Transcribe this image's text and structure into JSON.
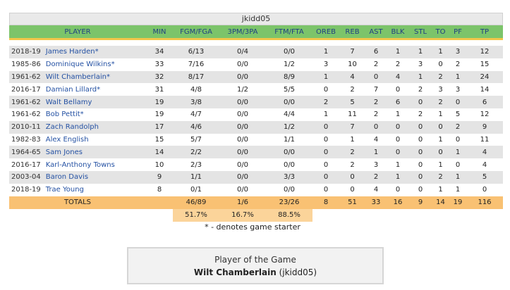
{
  "box": {
    "header": "jkidd05",
    "columns": [
      "PLAYER",
      "MIN",
      "FGM/FGA",
      "3PM/3PA",
      "FTM/FTA",
      "OREB",
      "REB",
      "AST",
      "BLK",
      "STL",
      "TO",
      "PF",
      "TP"
    ],
    "rows": [
      {
        "season": "2018-19",
        "name": "James Harden*",
        "min": "34",
        "fg": "6/13",
        "tp3": "0/4",
        "ft": "0/0",
        "oreb": "1",
        "reb": "7",
        "ast": "6",
        "blk": "1",
        "stl": "1",
        "to": "1",
        "pf": "3",
        "tp": "12"
      },
      {
        "season": "1985-86",
        "name": "Dominique Wilkins*",
        "min": "33",
        "fg": "7/16",
        "tp3": "0/0",
        "ft": "1/2",
        "oreb": "3",
        "reb": "10",
        "ast": "2",
        "blk": "2",
        "stl": "3",
        "to": "0",
        "pf": "2",
        "tp": "15"
      },
      {
        "season": "1961-62",
        "name": "Wilt Chamberlain*",
        "min": "32",
        "fg": "8/17",
        "tp3": "0/0",
        "ft": "8/9",
        "oreb": "1",
        "reb": "4",
        "ast": "0",
        "blk": "4",
        "stl": "1",
        "to": "2",
        "pf": "1",
        "tp": "24"
      },
      {
        "season": "2016-17",
        "name": "Damian Lillard*",
        "min": "31",
        "fg": "4/8",
        "tp3": "1/2",
        "ft": "5/5",
        "oreb": "0",
        "reb": "2",
        "ast": "7",
        "blk": "0",
        "stl": "2",
        "to": "3",
        "pf": "3",
        "tp": "14"
      },
      {
        "season": "1961-62",
        "name": "Walt Bellamy",
        "min": "19",
        "fg": "3/8",
        "tp3": "0/0",
        "ft": "0/0",
        "oreb": "2",
        "reb": "5",
        "ast": "2",
        "blk": "6",
        "stl": "0",
        "to": "2",
        "pf": "0",
        "tp": "6"
      },
      {
        "season": "1961-62",
        "name": "Bob Pettit*",
        "min": "19",
        "fg": "4/7",
        "tp3": "0/0",
        "ft": "4/4",
        "oreb": "1",
        "reb": "11",
        "ast": "2",
        "blk": "1",
        "stl": "2",
        "to": "1",
        "pf": "5",
        "tp": "12"
      },
      {
        "season": "2010-11",
        "name": "Zach Randolph",
        "min": "17",
        "fg": "4/6",
        "tp3": "0/0",
        "ft": "1/2",
        "oreb": "0",
        "reb": "7",
        "ast": "0",
        "blk": "0",
        "stl": "0",
        "to": "0",
        "pf": "2",
        "tp": "9"
      },
      {
        "season": "1982-83",
        "name": "Alex English",
        "min": "15",
        "fg": "5/7",
        "tp3": "0/0",
        "ft": "1/1",
        "oreb": "0",
        "reb": "1",
        "ast": "4",
        "blk": "0",
        "stl": "0",
        "to": "1",
        "pf": "0",
        "tp": "11"
      },
      {
        "season": "1964-65",
        "name": "Sam Jones",
        "min": "14",
        "fg": "2/2",
        "tp3": "0/0",
        "ft": "0/0",
        "oreb": "0",
        "reb": "2",
        "ast": "1",
        "blk": "0",
        "stl": "0",
        "to": "0",
        "pf": "1",
        "tp": "4"
      },
      {
        "season": "2016-17",
        "name": "Karl-Anthony Towns",
        "min": "10",
        "fg": "2/3",
        "tp3": "0/0",
        "ft": "0/0",
        "oreb": "0",
        "reb": "2",
        "ast": "3",
        "blk": "1",
        "stl": "0",
        "to": "1",
        "pf": "0",
        "tp": "4"
      },
      {
        "season": "2003-04",
        "name": "Baron Davis",
        "min": "9",
        "fg": "1/1",
        "tp3": "0/0",
        "ft": "3/3",
        "oreb": "0",
        "reb": "0",
        "ast": "2",
        "blk": "1",
        "stl": "0",
        "to": "2",
        "pf": "1",
        "tp": "5"
      },
      {
        "season": "2018-19",
        "name": "Trae Young",
        "min": "8",
        "fg": "0/1",
        "tp3": "0/0",
        "ft": "0/0",
        "oreb": "0",
        "reb": "0",
        "ast": "4",
        "blk": "0",
        "stl": "0",
        "to": "1",
        "pf": "1",
        "tp": "0"
      }
    ],
    "totals": {
      "label": "TOTALS",
      "min": "",
      "fg": "46/89",
      "tp3": "1/6",
      "ft": "23/26",
      "oreb": "8",
      "reb": "51",
      "ast": "33",
      "blk": "16",
      "stl": "9",
      "to": "14",
      "pf": "19",
      "tp": "116"
    },
    "percentages": {
      "fg": "51.7%",
      "tp3": "16.7%",
      "ft": "88.5%"
    }
  },
  "note": "* - denotes game starter",
  "player_of_game": {
    "title": "Player of the Game",
    "name": "Wilt Chamberlain",
    "team": "(jkidd05)"
  },
  "colors": {
    "header_green": "#7cc46a",
    "header_text": "#1f3e83",
    "accent_yellow": "#f1c64a",
    "totals_orange": "#f9c173",
    "pct_orange": "#fbd49a",
    "link_blue": "#2451a3",
    "row_alt": "#e4e4e4"
  }
}
